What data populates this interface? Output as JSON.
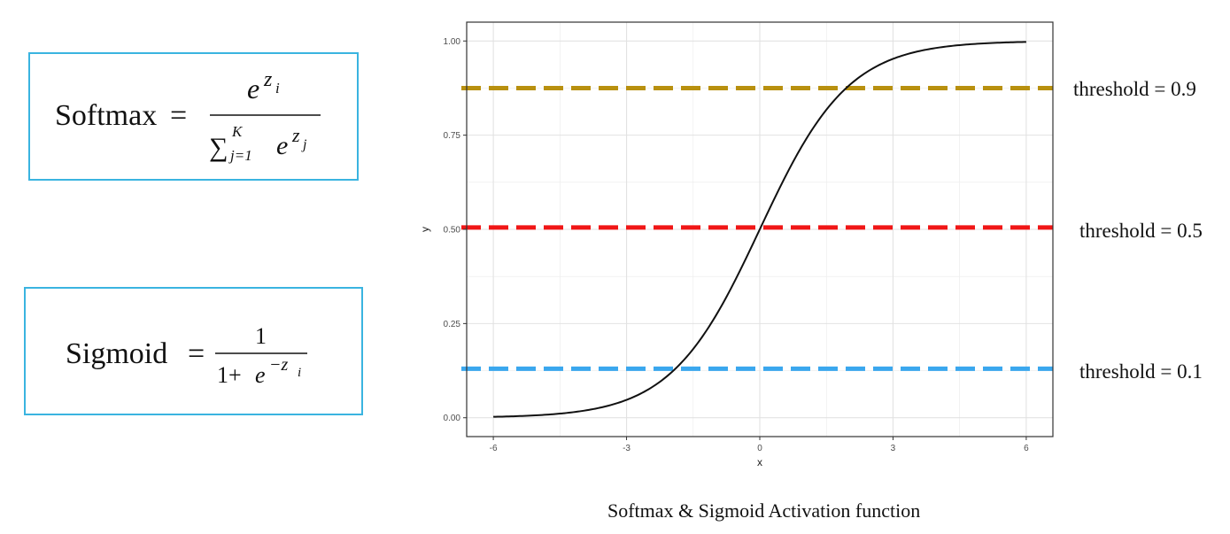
{
  "formulas": {
    "softmax": {
      "name": "Softmax",
      "equals": "=",
      "numerator_base": "e",
      "numerator_exp_var": "z",
      "numerator_exp_sub": "i",
      "sum_symbol": "∑",
      "sum_upper": "K",
      "sum_lower": "j=1",
      "denominator_base": "e",
      "denominator_exp_var": "z",
      "denominator_exp_sub": "j"
    },
    "sigmoid": {
      "name": "Sigmoid",
      "equals": "=",
      "numerator": "1",
      "denominator_prefix": "1+",
      "denominator_base": "e",
      "denominator_exp": "−z",
      "denominator_exp_sub": "i"
    }
  },
  "colors": {
    "box_border": "#3ab4e0",
    "curve": "#111111",
    "threshold_high": "#b8900f",
    "threshold_mid": "#f01616",
    "threshold_low": "#3aa7ee",
    "grid": "#ebebeb"
  },
  "chart_data": {
    "type": "line",
    "function": "sigmoid",
    "x": [
      -6,
      -5,
      -4,
      -3,
      -2,
      -1,
      0,
      1,
      2,
      3,
      4,
      5,
      6
    ],
    "series": [
      {
        "values": [
          0.0025,
          0.0067,
          0.018,
          0.047,
          0.119,
          0.269,
          0.5,
          0.731,
          0.881,
          0.953,
          0.982,
          0.9933,
          0.9975
        ]
      }
    ],
    "xlabel": "x",
    "ylabel": "y",
    "xlim": [
      -6.6,
      6.6
    ],
    "ylim": [
      -0.05,
      1.05
    ],
    "xticks": [
      -6,
      -3,
      0,
      3,
      6
    ],
    "xtick_labels": [
      "-6",
      "-3",
      "0",
      "3",
      "6"
    ],
    "yticks": [
      0,
      0.25,
      0.5,
      0.75,
      1
    ],
    "ytick_labels": [
      "0.00",
      "0.25",
      "0.50",
      "0.75",
      "1.00"
    ],
    "grid": true,
    "thresholds": [
      {
        "label": "threshold = 0.9",
        "y": 0.875,
        "color": "#b8900f"
      },
      {
        "label": "threshold = 0.5",
        "y": 0.505,
        "color": "#f01616"
      },
      {
        "label": "threshold = 0.1",
        "y": 0.13,
        "color": "#3aa7ee"
      }
    ]
  },
  "caption": "Softmax & Sigmoid Activation function"
}
